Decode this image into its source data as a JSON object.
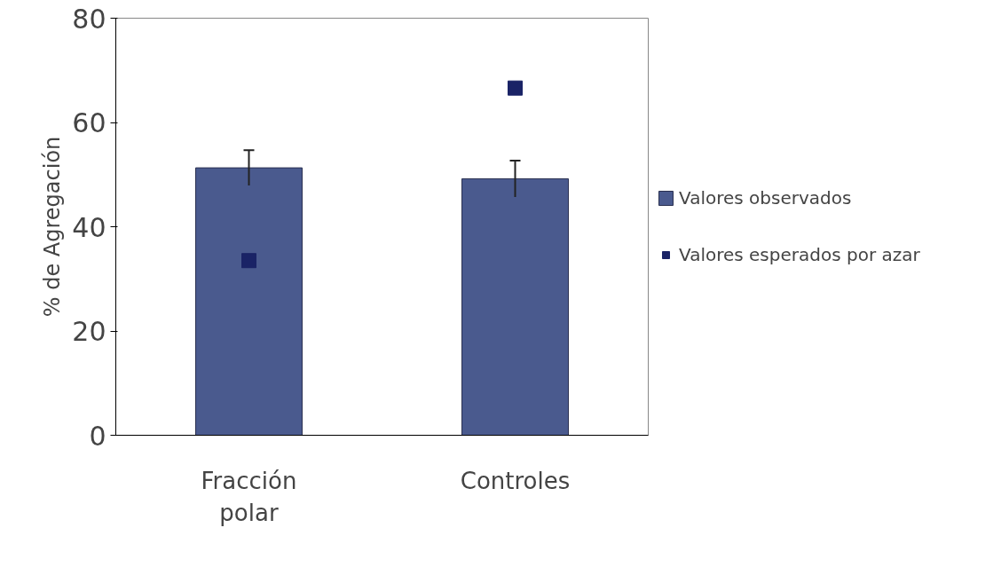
{
  "chart_data": {
    "type": "bar",
    "ylabel": "% de Agregación",
    "categories": [
      "Fracción polar",
      "Controles"
    ],
    "series": [
      {
        "name": "Valores observados",
        "color": "#4a5a8e",
        "values": [
          51.3,
          49.2
        ],
        "errors": [
          3.4,
          3.5
        ]
      },
      {
        "name": "Valores esperados por azar",
        "type": "scatter",
        "color": "#1a2366",
        "values": [
          33.5,
          66.6
        ],
        "marker": "square"
      }
    ],
    "ylim": [
      0,
      80
    ],
    "yticks": [
      0,
      20,
      40,
      60,
      80
    ],
    "grid": false,
    "legend": "right"
  }
}
